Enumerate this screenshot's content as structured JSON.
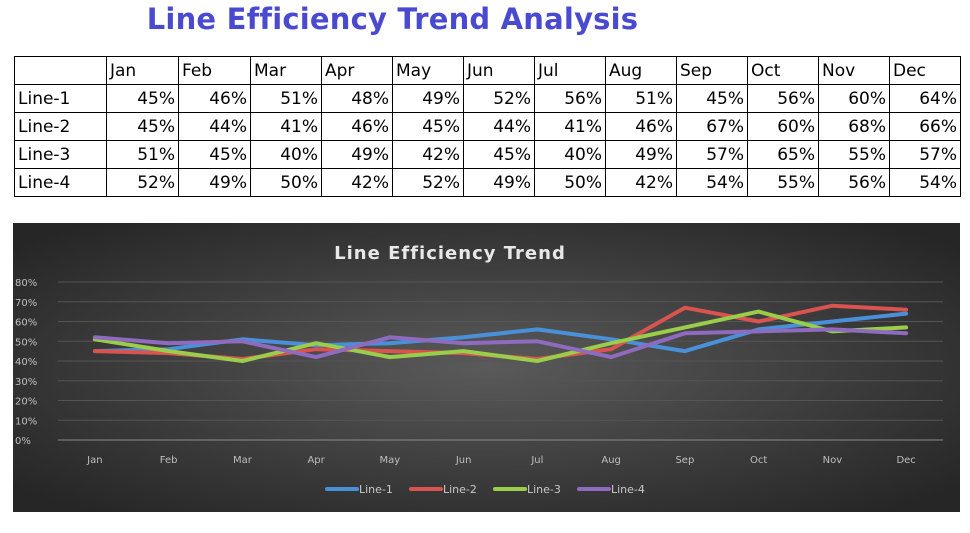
{
  "page": {
    "title": "Line Efficiency Trend Analysis"
  },
  "table": {
    "months": [
      "Jan",
      "Feb",
      "Mar",
      "Apr",
      "May",
      "Jun",
      "Jul",
      "Aug",
      "Sep",
      "Oct",
      "Nov",
      "Dec"
    ],
    "rows": [
      {
        "label": "Line-1",
        "values": [
          "45%",
          "46%",
          "51%",
          "48%",
          "49%",
          "52%",
          "56%",
          "51%",
          "45%",
          "56%",
          "60%",
          "64%"
        ]
      },
      {
        "label": "Line-2",
        "values": [
          "45%",
          "44%",
          "41%",
          "46%",
          "45%",
          "44%",
          "41%",
          "46%",
          "67%",
          "60%",
          "68%",
          "66%"
        ]
      },
      {
        "label": "Line-3",
        "values": [
          "51%",
          "45%",
          "40%",
          "49%",
          "42%",
          "45%",
          "40%",
          "49%",
          "57%",
          "65%",
          "55%",
          "57%"
        ]
      },
      {
        "label": "Line-4",
        "values": [
          "52%",
          "49%",
          "50%",
          "42%",
          "52%",
          "49%",
          "50%",
          "42%",
          "54%",
          "55%",
          "56%",
          "54%"
        ]
      }
    ]
  },
  "chart_data": {
    "type": "line",
    "title": "Line Efficiency Trend",
    "x": [
      "Jan",
      "Feb",
      "Mar",
      "Apr",
      "May",
      "Jun",
      "Jul",
      "Aug",
      "Sep",
      "Oct",
      "Nov",
      "Dec"
    ],
    "ylim": [
      0,
      80
    ],
    "y_ticks": [
      0,
      10,
      20,
      30,
      40,
      50,
      60,
      70,
      80
    ],
    "y_tick_format": "percent",
    "grid": true,
    "legend_position": "bottom",
    "series": [
      {
        "name": "Line-1",
        "color": "#4a90d9",
        "values": [
          45,
          46,
          51,
          48,
          49,
          52,
          56,
          51,
          45,
          56,
          60,
          64
        ]
      },
      {
        "name": "Line-2",
        "color": "#d9534f",
        "values": [
          45,
          44,
          41,
          46,
          45,
          44,
          41,
          46,
          67,
          60,
          68,
          66
        ]
      },
      {
        "name": "Line-3",
        "color": "#9acd4a",
        "values": [
          51,
          45,
          40,
          49,
          42,
          45,
          40,
          49,
          57,
          65,
          55,
          57
        ]
      },
      {
        "name": "Line-4",
        "color": "#8e6bbf",
        "values": [
          52,
          49,
          50,
          42,
          52,
          49,
          50,
          42,
          54,
          55,
          56,
          54
        ]
      }
    ]
  }
}
